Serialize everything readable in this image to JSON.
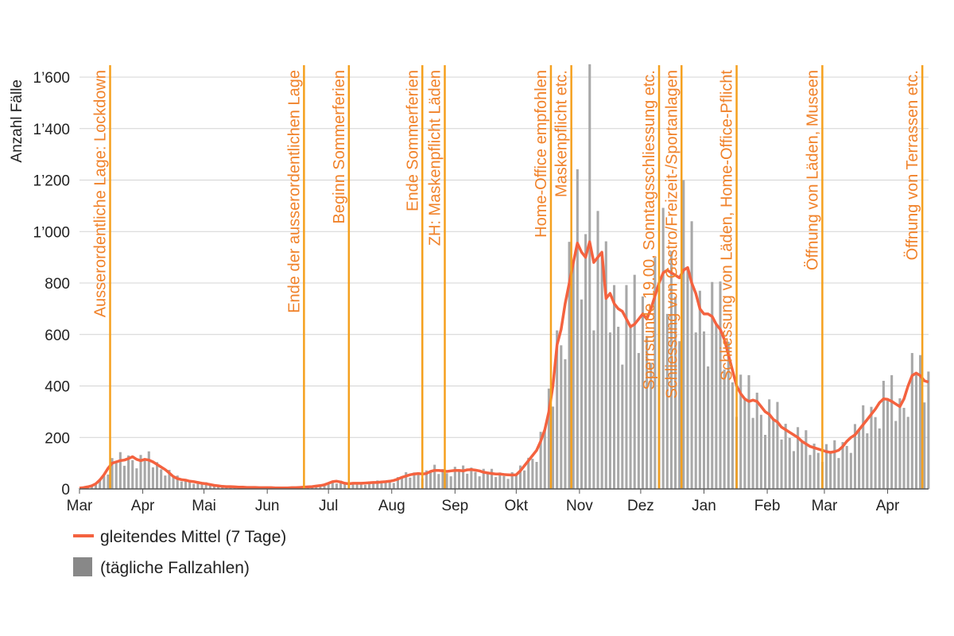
{
  "chart_data": {
    "type": "bar",
    "y_label": "Anzahl Fälle",
    "xlim": [
      0,
      418
    ],
    "ylim": [
      0,
      1600
    ],
    "xticks": [
      {
        "value": 0,
        "label": "Mar"
      },
      {
        "value": 31,
        "label": "Apr"
      },
      {
        "value": 61,
        "label": "Mai"
      },
      {
        "value": 92,
        "label": "Jun"
      },
      {
        "value": 122,
        "label": "Jul"
      },
      {
        "value": 153,
        "label": "Aug"
      },
      {
        "value": 184,
        "label": "Sep"
      },
      {
        "value": 214,
        "label": "Okt"
      },
      {
        "value": 245,
        "label": "Nov"
      },
      {
        "value": 275,
        "label": "Dez"
      },
      {
        "value": 306,
        "label": "Jan"
      },
      {
        "value": 337,
        "label": "Feb"
      },
      {
        "value": 365,
        "label": "Mar"
      },
      {
        "value": 396,
        "label": "Apr"
      }
    ],
    "yticks": [
      0,
      200,
      400,
      600,
      800,
      {
        "value": 1000,
        "label": "1’000"
      },
      {
        "value": 1200,
        "label": "1’200"
      },
      {
        "value": 1400,
        "label": "1’400"
      },
      {
        "value": 1600,
        "label": "1’600"
      }
    ],
    "grid": true,
    "event_color": "#f5a01e",
    "events": [
      {
        "x": 15,
        "label": "Ausserordentliche Lage: Lockdown"
      },
      {
        "x": 110,
        "label": "Ende der ausserordentlichen Lage"
      },
      {
        "x": 132,
        "label": "Beginn Sommerferien"
      },
      {
        "x": 168,
        "label": "Ende Sommerferien"
      },
      {
        "x": 179,
        "label": "ZH: Maskenpflicht Läden"
      },
      {
        "x": 231,
        "label": "Home-Office empfohlen"
      },
      {
        "x": 241,
        "label": "Maskenpflicht etc."
      },
      {
        "x": 284,
        "label": "Sperrstunde 19.00, Sonntagsschliessung etc."
      },
      {
        "x": 295,
        "label": "Schliessung von Gastro/Freizeit-/Sportanlagen"
      },
      {
        "x": 322,
        "label": "Schliessung von Läden, Home-Office-Pflicht"
      },
      {
        "x": 364,
        "label": "Öffnung von Läden, Museen"
      },
      {
        "x": 413,
        "label": "Öffnung von Terrassen etc."
      }
    ],
    "x": [
      0,
      2,
      4,
      6,
      8,
      10,
      12,
      14,
      16,
      18,
      20,
      22,
      24,
      26,
      28,
      30,
      32,
      34,
      36,
      38,
      40,
      42,
      44,
      46,
      48,
      50,
      52,
      54,
      56,
      58,
      60,
      62,
      64,
      66,
      68,
      70,
      72,
      74,
      76,
      78,
      80,
      82,
      84,
      86,
      88,
      90,
      92,
      94,
      96,
      98,
      100,
      102,
      104,
      106,
      108,
      110,
      112,
      114,
      116,
      118,
      120,
      122,
      124,
      126,
      128,
      130,
      132,
      134,
      136,
      138,
      140,
      142,
      144,
      146,
      148,
      150,
      152,
      154,
      156,
      158,
      160,
      162,
      164,
      166,
      168,
      170,
      172,
      174,
      176,
      178,
      180,
      182,
      184,
      186,
      188,
      190,
      192,
      194,
      196,
      198,
      200,
      202,
      204,
      206,
      208,
      210,
      212,
      214,
      216,
      218,
      220,
      222,
      224,
      226,
      228,
      230,
      232,
      234,
      236,
      238,
      240,
      242,
      244,
      246,
      248,
      250,
      252,
      254,
      256,
      258,
      260,
      262,
      264,
      266,
      268,
      270,
      272,
      274,
      276,
      278,
      280,
      282,
      284,
      286,
      288,
      290,
      292,
      294,
      296,
      298,
      300,
      302,
      304,
      306,
      308,
      310,
      312,
      314,
      316,
      318,
      320,
      322,
      324,
      326,
      328,
      330,
      332,
      334,
      336,
      338,
      340,
      342,
      344,
      346,
      348,
      350,
      352,
      354,
      356,
      358,
      360,
      362,
      364,
      366,
      368,
      370,
      372,
      374,
      376,
      378,
      380,
      382,
      384,
      386,
      388,
      390,
      392,
      394,
      396,
      398,
      400,
      402,
      404,
      406,
      408,
      410,
      412,
      414,
      416
    ],
    "series": [
      {
        "name": "(tägliche Fallzahlen)",
        "type": "bar",
        "color": "#a8a8a8",
        "values": [
          2,
          6,
          8,
          16,
          16,
          39,
          50,
          56,
          120,
          105,
          143,
          90,
          130,
          112,
          80,
          132,
          115,
          146,
          84,
          104,
          76,
          52,
          74,
          48,
          52,
          29,
          37,
          27,
          20,
          30,
          22,
          26,
          14,
          15,
          11,
          7,
          11,
          9,
          10,
          6,
          8,
          5,
          4,
          7,
          5,
          7,
          4,
          6,
          4,
          3,
          5,
          4,
          7,
          4,
          7,
          6,
          6,
          11,
          11,
          17,
          13,
          24,
          25,
          21,
          32,
          22,
          26,
          18,
          24,
          20,
          16,
          29,
          25,
          33,
          22,
          31,
          27,
          23,
          46,
          45,
          65,
          44,
          64,
          54,
          41,
          72,
          68,
          94,
          58,
          77,
          61,
          49,
          86,
          72,
          91,
          59,
          83,
          66,
          49,
          78,
          62,
          78,
          46,
          64,
          50,
          39,
          65,
          55,
          91,
          72,
          121,
          117,
          105,
          222,
          230,
          390,
          320,
          616,
          558,
          504,
          960,
          880,
          1242,
          736,
          990,
          1650,
          616,
          1080,
          920,
          962,
          608,
          792,
          630,
          483,
          792,
          630,
          832,
          528,
          748,
          594,
          490,
          900,
          800,
          1092,
          680,
          924,
          747,
          574,
          1200,
          860,
          1040,
          608,
          770,
          612,
          476,
          804,
          640,
          806,
          464,
          572,
          414,
          280,
          444,
          350,
          442,
          276,
          374,
          288,
          210,
          348,
          270,
          338,
          192,
          253,
          198,
          147,
          240,
          185,
          228,
          132,
          176,
          140,
          105,
          174,
          142,
          189,
          120,
          182,
          167,
          140,
          252,
          230,
          325,
          216,
          319,
          279,
          235,
          420,
          348,
          442,
          264,
          352,
          315,
          280,
          528,
          450,
          520,
          336,
          456
        ]
      },
      {
        "name": "gleitendes Mittel (7 Tage)",
        "type": "line",
        "color": "#f4623f",
        "values": [
          3,
          5,
          8,
          12,
          20,
          35,
          55,
          80,
          100,
          105,
          110,
          112,
          118,
          125,
          115,
          110,
          115,
          112,
          105,
          95,
          85,
          75,
          62,
          48,
          40,
          36,
          34,
          30,
          28,
          25,
          22,
          20,
          17,
          14,
          12,
          10,
          9,
          9,
          8,
          7,
          7,
          6,
          6,
          6,
          5,
          5,
          5,
          5,
          4,
          4,
          4,
          4,
          5,
          5,
          6,
          7,
          8,
          9,
          11,
          13,
          16,
          22,
          28,
          30,
          27,
          22,
          20,
          22,
          22,
          22,
          23,
          24,
          25,
          25,
          27,
          28,
          30,
          33,
          38,
          45,
          50,
          55,
          58,
          60,
          58,
          60,
          68,
          72,
          72,
          70,
          68,
          70,
          72,
          72,
          70,
          74,
          75,
          73,
          70,
          65,
          62,
          60,
          58,
          58,
          56,
          55,
          54,
          55,
          70,
          90,
          110,
          130,
          150,
          185,
          230,
          300,
          400,
          560,
          620,
          720,
          800,
          880,
          955,
          920,
          900,
          960,
          880,
          900,
          920,
          740,
          760,
          720,
          700,
          690,
          660,
          630,
          640,
          660,
          680,
          660,
          700,
          750,
          800,
          840,
          850,
          840,
          830,
          820,
          850,
          860,
          800,
          760,
          700,
          680,
          680,
          670,
          640,
          620,
          580,
          520,
          460,
          400,
          370,
          350,
          340,
          345,
          340,
          320,
          300,
          290,
          270,
          260,
          240,
          230,
          220,
          210,
          200,
          185,
          175,
          165,
          160,
          155,
          150,
          145,
          142,
          145,
          150,
          165,
          185,
          200,
          210,
          230,
          250,
          270,
          290,
          310,
          335,
          350,
          348,
          340,
          330,
          320,
          350,
          400,
          440,
          450,
          440,
          420,
          415
        ]
      }
    ]
  }
}
